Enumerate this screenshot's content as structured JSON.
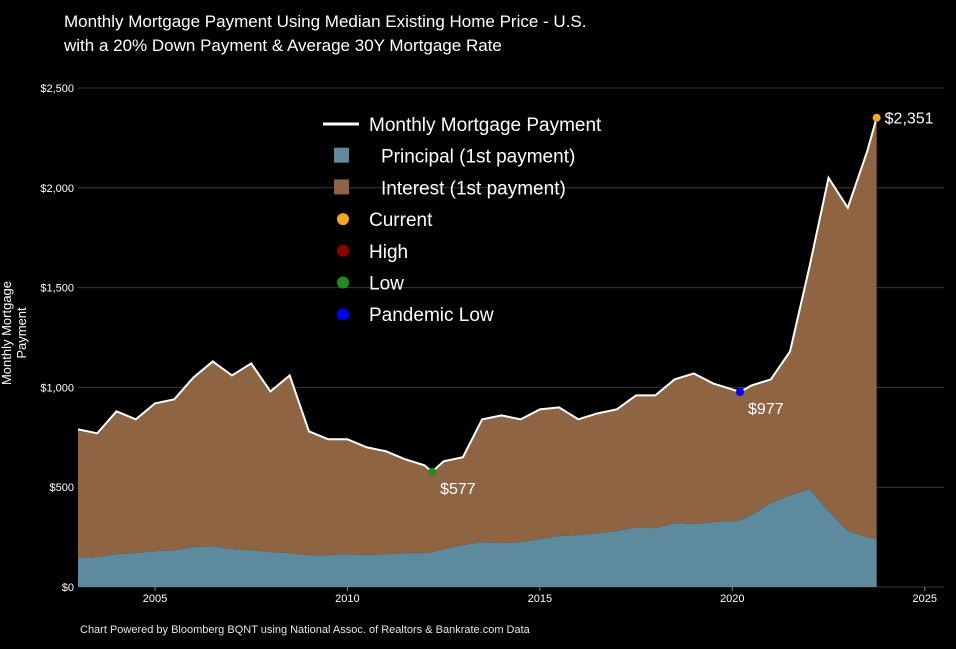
{
  "title_line1": "Monthly Mortgage Payment Using Median Existing Home Price - U.S.",
  "title_line2": "with a 20% Down Payment & Average 30Y Mortgage Rate",
  "ylabel": "Monthly Mortgage Payment",
  "source": "Chart Powered by Bloomberg BQNT using National Assoc. of Realtors & Bankrate.com Data",
  "colors": {
    "payment": "#ffffff",
    "principal": "#5d8a9c",
    "interest": "#8e6442",
    "current": "#f5a623",
    "high": "#8b0000",
    "low": "#1e8c1e",
    "pandemic_low": "#0000ff",
    "high_label": "#7a7a7a"
  },
  "chart_data": {
    "type": "area",
    "title": "Monthly Mortgage Payment Using Median Existing Home Price - U.S. with a 20% Down Payment & Average 30Y Mortgage Rate",
    "xlabel": "",
    "ylabel": "Monthly Mortgage Payment",
    "xlim": [
      2003.0,
      2025.5
    ],
    "ylim": [
      0,
      2500
    ],
    "x_ticks": [
      2005,
      2010,
      2015,
      2020,
      2025
    ],
    "x_tick_labels": [
      "2005",
      "2010",
      "2015",
      "2020",
      "2025"
    ],
    "y_ticks": [
      0,
      500,
      1000,
      1500,
      2000,
      2500
    ],
    "y_tick_labels": [
      "$0",
      "$500",
      "$1,000",
      "$1,500",
      "$2,000",
      "$2,500"
    ],
    "grid": true,
    "legend_position": "top-center",
    "legend": [
      {
        "key": "payment",
        "label": "Monthly Mortgage Payment",
        "marker": "line"
      },
      {
        "key": "principal",
        "label": "Principal (1st payment)",
        "marker": "square"
      },
      {
        "key": "interest",
        "label": "Interest (1st payment)",
        "marker": "square"
      },
      {
        "key": "current",
        "label": "Current",
        "marker": "dot"
      },
      {
        "key": "high",
        "label": "High",
        "marker": "dot"
      },
      {
        "key": "low",
        "label": "Low",
        "marker": "dot"
      },
      {
        "key": "pandemic_low",
        "label": "Pandemic Low",
        "marker": "dot"
      }
    ],
    "x": [
      2003.0,
      2003.5,
      2004.0,
      2004.5,
      2005.0,
      2005.5,
      2006.0,
      2006.5,
      2007.0,
      2007.5,
      2008.0,
      2008.5,
      2009.0,
      2009.5,
      2010.0,
      2010.5,
      2011.0,
      2011.5,
      2012.0,
      2012.2,
      2012.5,
      2013.0,
      2013.5,
      2014.0,
      2014.5,
      2015.0,
      2015.5,
      2016.0,
      2016.5,
      2017.0,
      2017.5,
      2018.0,
      2018.5,
      2019.0,
      2019.5,
      2020.0,
      2020.2,
      2020.5,
      2021.0,
      2021.5,
      2022.0,
      2022.5,
      2023.0,
      2023.5,
      2023.75
    ],
    "series": [
      {
        "name": "Monthly Mortgage Payment",
        "key": "payment",
        "values": [
          790,
          770,
          880,
          840,
          920,
          940,
          1050,
          1130,
          1060,
          1120,
          980,
          1060,
          780,
          740,
          740,
          700,
          680,
          640,
          610,
          577,
          630,
          650,
          840,
          860,
          840,
          890,
          900,
          840,
          870,
          890,
          960,
          960,
          1040,
          1070,
          1020,
          990,
          977,
          1010,
          1040,
          1180,
          1600,
          2050,
          1900,
          2180,
          2351
        ]
      },
      {
        "name": "Principal (1st payment)",
        "key": "principal",
        "values": [
          145,
          150,
          165,
          170,
          180,
          185,
          200,
          205,
          190,
          185,
          175,
          170,
          160,
          160,
          165,
          160,
          165,
          170,
          170,
          175,
          190,
          210,
          225,
          220,
          225,
          240,
          255,
          260,
          270,
          280,
          300,
          295,
          320,
          315,
          325,
          330,
          335,
          360,
          420,
          460,
          490,
          380,
          280,
          250,
          240
        ]
      }
    ],
    "annotations": [
      {
        "key": "current",
        "x": 2023.75,
        "y": 2351,
        "label": "$2,351"
      },
      {
        "key": "low",
        "x": 2012.2,
        "y": 577,
        "label": "$577"
      },
      {
        "key": "pandemic_low",
        "x": 2020.2,
        "y": 977,
        "label": "$977"
      }
    ]
  }
}
